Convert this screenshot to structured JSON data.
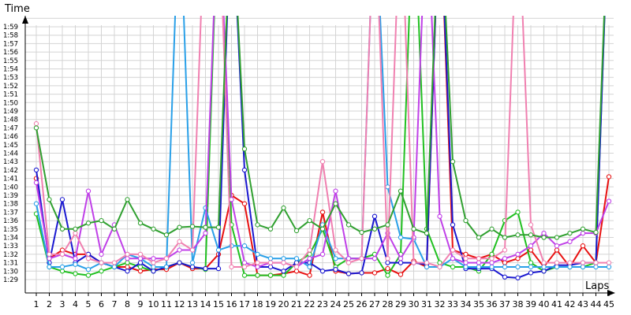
{
  "chart_data": {
    "type": "line",
    "xlabel": "Laps",
    "ylabel": "Time",
    "x_ticks": [
      "1",
      "2",
      "3",
      "4",
      "5",
      "6",
      "7",
      "8",
      "9",
      "10",
      "11",
      "12",
      "13",
      "14",
      "15",
      "16",
      "17",
      "18",
      "19",
      "20",
      "21",
      "22",
      "23",
      "24",
      "25",
      "26",
      "27",
      "28",
      "29",
      "30",
      "31",
      "32",
      "33",
      "34",
      "35",
      "36",
      "37",
      "38",
      "39",
      "40",
      "41",
      "42",
      "43",
      "44",
      "45"
    ],
    "y_ticks": [
      "1:29",
      "1:30",
      "1:31",
      "1:32",
      "1:33",
      "1:34",
      "1:35",
      "1:36",
      "1:37",
      "1:38",
      "1:39",
      "1:40",
      "1:41",
      "1:42",
      "1:43",
      "1:44",
      "1:45",
      "1:46",
      "1:47",
      "1:48",
      "1:49",
      "1:50",
      "1:51",
      "1:52",
      "1:53",
      "1:54",
      "1:55",
      "1:56",
      "1:57",
      "1:58",
      "1:59"
    ],
    "y_unit": "seconds",
    "ylim": [
      88.5,
      122
    ],
    "xlim": [
      1,
      45
    ],
    "grid": true,
    "series": [
      {
        "color": "#e81010",
        "values": [
          101,
          91.5,
          92.5,
          92,
          92,
          91,
          90.5,
          90.5,
          90,
          90.2,
          90.2,
          91,
          90.3,
          90.3,
          92,
          99,
          98,
          89.5,
          89.5,
          89.7,
          90,
          89.5,
          97,
          90,
          89.7,
          89.8,
          89.8,
          90.3,
          89.6,
          91.2,
          90.5,
          135,
          92.5,
          92,
          91.5,
          92,
          91,
          91.5,
          92.5,
          90.5,
          92.5,
          90.5,
          93,
          91,
          101.2
        ]
      },
      {
        "color": "#20c020",
        "values": [
          96.8,
          90.5,
          90,
          89.7,
          89.5,
          90,
          90.5,
          91,
          90.5,
          90,
          90.5,
          91,
          90.5,
          90.2,
          135,
          95.5,
          89.5,
          89.5,
          89.5,
          89.5,
          91,
          92,
          95,
          90.5,
          91.5,
          91.5,
          92,
          89.5,
          92,
          135,
          95,
          91,
          90.5,
          90.5,
          90,
          92,
          96,
          97,
          91,
          90,
          90.5,
          90.5,
          90.5,
          91,
          135
        ]
      },
      {
        "color": "#1a18d0",
        "values": [
          102,
          91,
          98.5,
          91,
          92,
          91,
          90.5,
          90,
          91,
          90,
          90.5,
          91,
          90.5,
          90.3,
          90.3,
          135,
          102,
          90.5,
          90.5,
          90,
          91,
          91,
          90,
          90.2,
          89.7,
          89.8,
          96.5,
          91,
          91,
          91,
          90.8,
          135,
          95.5,
          90.3,
          90.3,
          90.3,
          89.3,
          89.2,
          89.8,
          90,
          90.7,
          90.7,
          91,
          91,
          135
        ]
      },
      {
        "color": "#2aa0e8",
        "values": [
          98,
          90.5,
          90.5,
          90.8,
          90.2,
          91,
          90.5,
          92,
          91.5,
          90.5,
          90.5,
          135,
          91,
          97.5,
          92.5,
          93,
          93,
          92,
          91.5,
          91.5,
          91.5,
          90.5,
          95.5,
          91.5,
          91.5,
          91.5,
          135,
          100,
          94,
          93.8,
          90.5,
          90.5,
          91.5,
          90.5,
          90.5,
          90.5,
          90.5,
          90.5,
          90.5,
          90.5,
          90.5,
          90.5,
          90.5,
          90.5,
          90.5
        ]
      },
      {
        "color": "#c040e8",
        "values": [
          100.5,
          91.5,
          92,
          91.5,
          99.5,
          92,
          95.5,
          91.5,
          91.5,
          91.5,
          91.5,
          92.5,
          92.5,
          94.5,
          135,
          98.5,
          91,
          90.5,
          91,
          91,
          90.5,
          91.5,
          92,
          99.5,
          91.5,
          91.5,
          91.5,
          94.5,
          91.5,
          94,
          135,
          96.5,
          91.5,
          91,
          91,
          91,
          91.5,
          92,
          93,
          94.5,
          93,
          93.5,
          94.5,
          94.5,
          98.3
        ]
      },
      {
        "color": "#f080b0",
        "values": [
          107.5,
          92,
          92,
          94.5,
          91.5,
          91,
          91,
          92,
          92,
          91,
          91.5,
          93.5,
          92.5,
          135,
          135,
          90.5,
          90.5,
          91,
          91,
          91,
          90.5,
          92.5,
          103,
          92.5,
          91,
          91.5,
          135,
          91.5,
          135,
          91,
          91,
          90.5,
          92.5,
          91.5,
          91.5,
          91.5,
          92.5,
          135,
          95.5,
          91,
          91,
          91,
          91,
          91,
          91
        ]
      },
      {
        "color": "#30a030",
        "values": [
          107,
          98.5,
          95,
          95,
          95.7,
          96,
          95,
          98.5,
          95.7,
          95,
          94.3,
          95.2,
          95.3,
          95.2,
          95.2,
          135,
          104.5,
          95.5,
          95,
          97.5,
          94.8,
          96,
          95,
          98,
          95.5,
          94.6,
          95,
          95.5,
          99.5,
          95,
          94.5,
          135,
          103,
          96,
          94,
          95,
          94,
          94.3,
          94.3,
          94,
          94,
          94.5,
          95,
          94.6,
          135
        ]
      }
    ]
  }
}
